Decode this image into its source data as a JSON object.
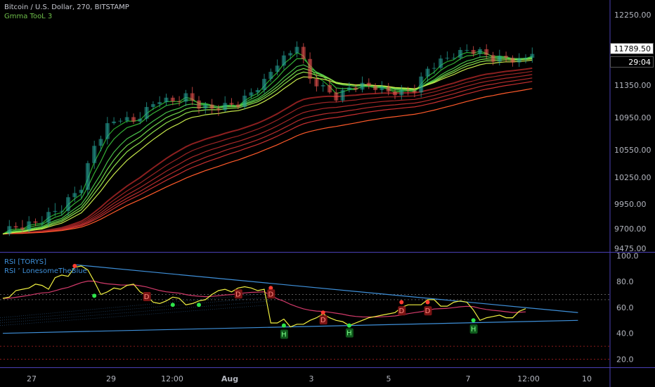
{
  "header": {
    "symbol": "Bitcoin / U.S. Dollar, 270, BITSTAMP",
    "indicator": "Gmma TooL 3"
  },
  "rsi_pane": {
    "title": "RSI [TORYS]",
    "subtitle": "RSI ’ LonesomeTheBlue"
  },
  "price_tags": {
    "last": "11789.50",
    "countdown": "29:04"
  },
  "colors": {
    "background": "#000000",
    "axis_line": "#4a3fb5",
    "axis_text": "#b2b5be",
    "up": "#26a69a",
    "down": "#ef5350",
    "short_ema": "#5cff3a",
    "long_ema": "#e5342a",
    "rsi": "#f0f040",
    "rsi_ma": "#d23a6a",
    "trendline": "#3e8fd8",
    "bull_mark": "#2ecc40",
    "bear_mark": "#ef3b3b"
  },
  "chart_data": [
    {
      "type": "candlestick",
      "title": "Bitcoin / U.S. Dollar, 270, BITSTAMP",
      "ylim": [
        9475,
        12400
      ],
      "yticks": [
        12250.0,
        11350.0,
        10950.0,
        10550.0,
        10250.0,
        9950.0,
        9700.0,
        9475.0
      ],
      "xticks": [
        "27",
        "29",
        "12:00",
        "Aug",
        "3",
        "5",
        "7",
        "12:00",
        "10"
      ],
      "last_price": 11789.5,
      "series_labels": [
        "Gmma TooL 3"
      ],
      "close_path": [
        [
          0,
          9680
        ],
        [
          5,
          9760
        ],
        [
          9,
          9920
        ],
        [
          12,
          10150
        ],
        [
          14,
          10600
        ],
        [
          16,
          10850
        ],
        [
          18,
          10950
        ],
        [
          20,
          10900
        ],
        [
          22,
          11050
        ],
        [
          24,
          11180
        ],
        [
          26,
          11150
        ],
        [
          28,
          11220
        ],
        [
          30,
          11100
        ],
        [
          32,
          11060
        ],
        [
          34,
          11100
        ],
        [
          36,
          11120
        ],
        [
          38,
          11260
        ],
        [
          40,
          11400
        ],
        [
          42,
          11640
        ],
        [
          44,
          11760
        ],
        [
          45,
          11880
        ],
        [
          47,
          11430
        ],
        [
          49,
          11320
        ],
        [
          51,
          11200
        ],
        [
          53,
          11320
        ],
        [
          55,
          11350
        ],
        [
          57,
          11330
        ],
        [
          59,
          11270
        ],
        [
          61,
          11260
        ],
        [
          63,
          11300
        ],
        [
          65,
          11560
        ],
        [
          67,
          11660
        ],
        [
          69,
          11740
        ],
        [
          71,
          11800
        ],
        [
          73,
          11780
        ],
        [
          75,
          11690
        ],
        [
          77,
          11700
        ],
        [
          79,
          11660
        ],
        [
          80,
          11700
        ],
        [
          81,
          11789.5
        ]
      ],
      "ema_periods": [
        3,
        5,
        8,
        10,
        12,
        15,
        30,
        35,
        40,
        45,
        50,
        60
      ]
    },
    {
      "type": "line",
      "title": "RSI [TORYS]",
      "subtitle": "RSI ’ LonesomeTheBlue",
      "ylim": [
        15,
        100
      ],
      "yticks": [
        100.0,
        80.0,
        60.0,
        40.0,
        20.0
      ],
      "levels": [
        70,
        66,
        30,
        20
      ],
      "series": [
        {
          "name": "RSI",
          "values": [
            67,
            68,
            73,
            74,
            75,
            78,
            77,
            74,
            83,
            85,
            84,
            91,
            92,
            89,
            80,
            70,
            72,
            75,
            74,
            77,
            78,
            72,
            69,
            64,
            63,
            65,
            68,
            67,
            62,
            63,
            65,
            66,
            70,
            73,
            74,
            72,
            75,
            76,
            75,
            73,
            74,
            48,
            48,
            51,
            45,
            47,
            47,
            50,
            52,
            55,
            52,
            50,
            49,
            46,
            48,
            50,
            52,
            53,
            54,
            55,
            56,
            60,
            62,
            62,
            62,
            66,
            66,
            61,
            61,
            64,
            65,
            64,
            58,
            50,
            52,
            53,
            54,
            52,
            52,
            57,
            59
          ]
        }
      ],
      "trendlines": [
        [
          [
            11,
            93
          ],
          [
            88,
            56
          ]
        ],
        [
          [
            0,
            40
          ],
          [
            88,
            50
          ]
        ]
      ],
      "markers": [
        {
          "label": "D",
          "x": 22,
          "y": 73,
          "kind": "bear"
        },
        {
          "label": "D",
          "x": 36,
          "y": 75,
          "kind": "bear"
        },
        {
          "label": "D",
          "x": 41,
          "y": 75,
          "kind": "bear"
        },
        {
          "label": "D",
          "x": 49,
          "y": 55,
          "kind": "bear"
        },
        {
          "label": "D",
          "x": 61,
          "y": 62,
          "kind": "bear"
        },
        {
          "label": "D",
          "x": 65,
          "y": 62,
          "kind": "bear"
        },
        {
          "label": "H",
          "x": 43,
          "y": 45,
          "kind": "bull"
        },
        {
          "label": "H",
          "x": 53,
          "y": 46,
          "kind": "bull"
        },
        {
          "label": "H",
          "x": 72,
          "y": 49,
          "kind": "bull"
        }
      ],
      "pivots_high": [
        [
          11,
          92
        ],
        [
          41,
          75
        ],
        [
          49,
          56
        ],
        [
          61,
          64
        ],
        [
          65,
          64
        ]
      ],
      "pivots_low": [
        [
          14,
          69
        ],
        [
          26,
          62
        ],
        [
          30,
          62
        ],
        [
          43,
          46
        ],
        [
          53,
          46
        ],
        [
          72,
          50
        ]
      ]
    }
  ]
}
